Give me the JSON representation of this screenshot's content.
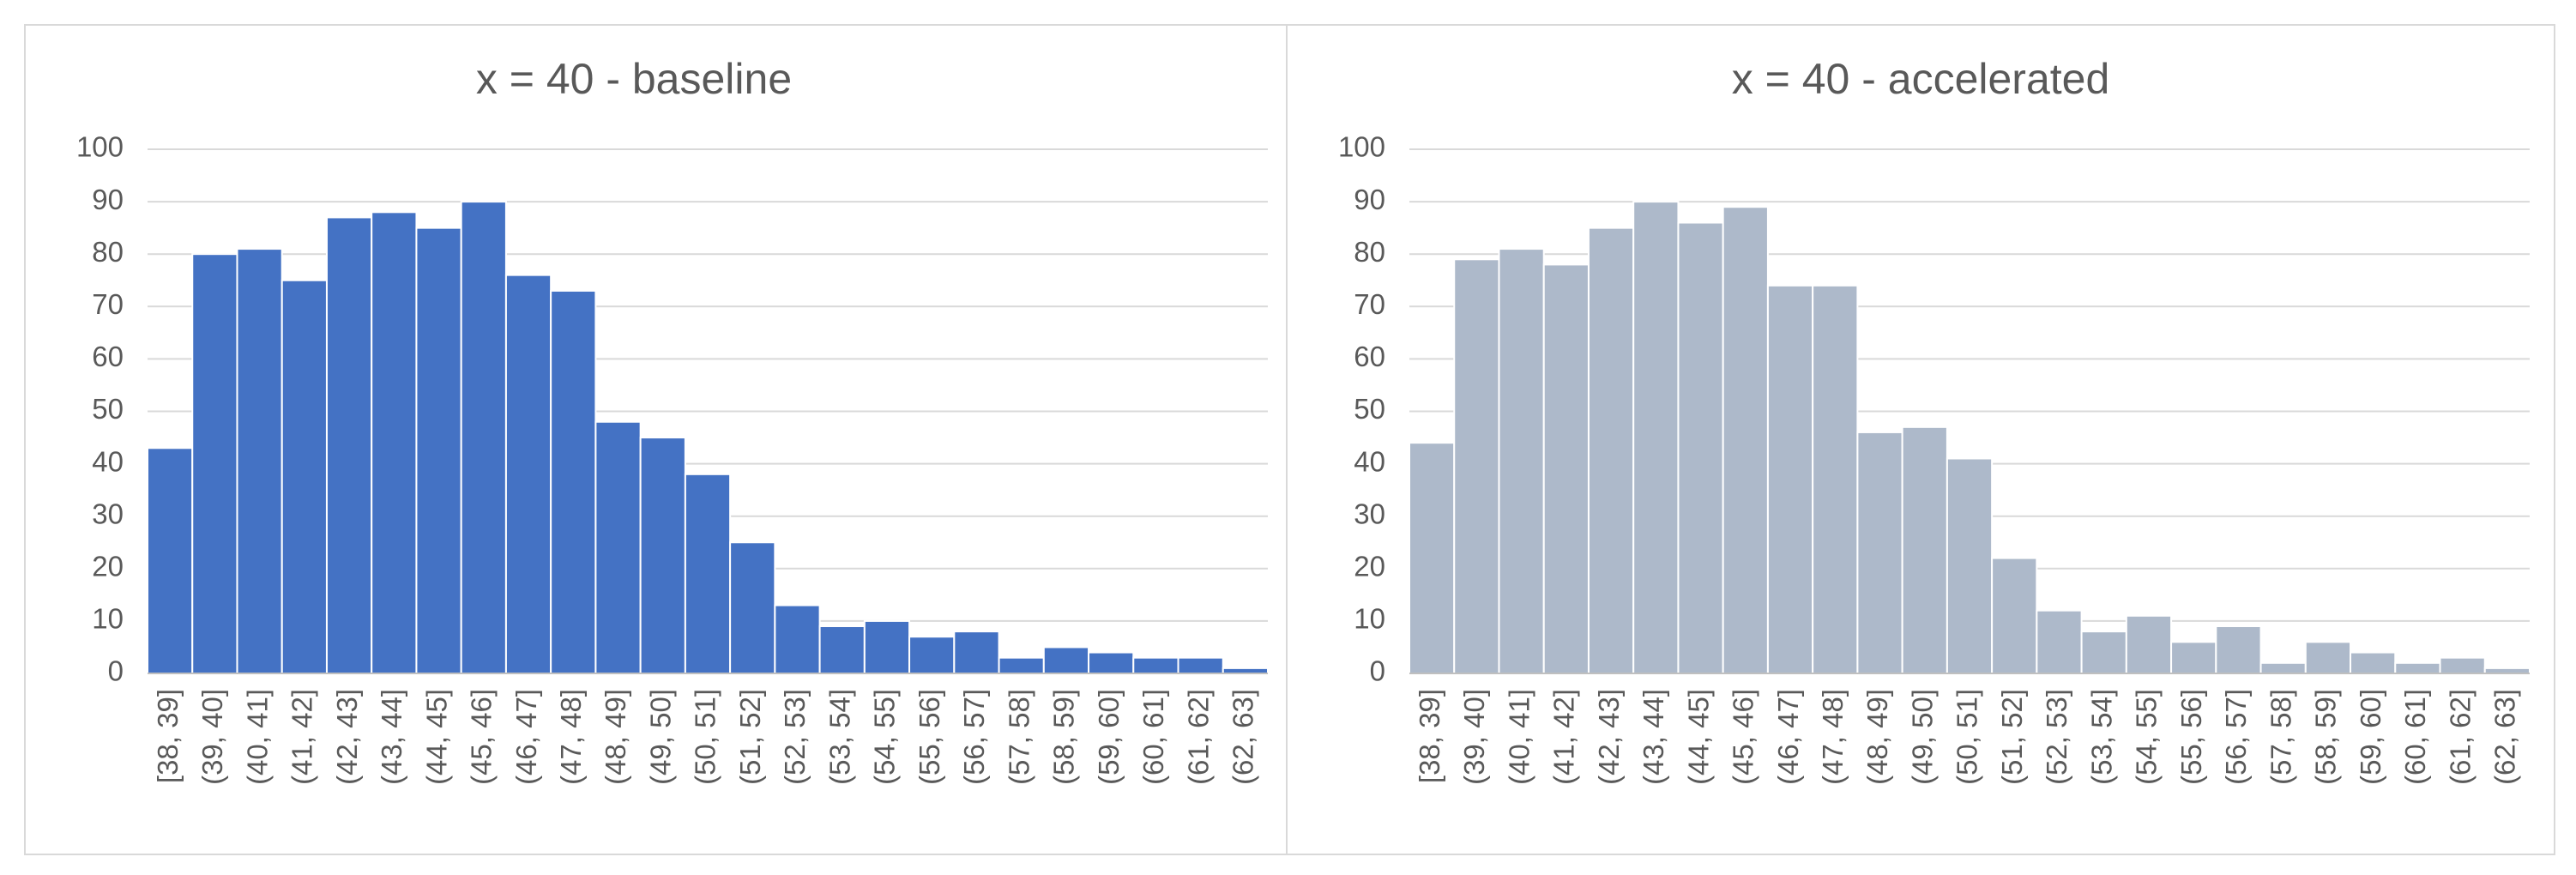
{
  "chart_data": [
    {
      "type": "bar",
      "title": "x = 40 - baseline",
      "color": "#4472c4",
      "categories": [
        "[38, 39]",
        "(39, 40]",
        "(40, 41]",
        "(41, 42]",
        "(42, 43]",
        "(43, 44]",
        "(44, 45]",
        "(45, 46]",
        "(46, 47]",
        "(47, 48]",
        "(48, 49]",
        "(49, 50]",
        "(50, 51]",
        "(51, 52]",
        "(52, 53]",
        "(53, 54]",
        "(54, 55]",
        "(55, 56]",
        "(56, 57]",
        "(57, 58]",
        "(58, 59]",
        "(59, 60]",
        "(60, 61]",
        "(61, 62]",
        "(62, 63]"
      ],
      "values": [
        43,
        80,
        81,
        75,
        87,
        88,
        85,
        90,
        76,
        73,
        48,
        45,
        38,
        25,
        13,
        9,
        10,
        7,
        8,
        3,
        5,
        4,
        3,
        3,
        1
      ],
      "ylim": [
        0,
        100
      ],
      "yticks": [
        0,
        10,
        20,
        30,
        40,
        50,
        60,
        70,
        80,
        90,
        100
      ],
      "grid": true
    },
    {
      "type": "bar",
      "title": "x = 40 - accelerated",
      "color": "#adb9ca",
      "categories": [
        "[38, 39]",
        "(39, 40]",
        "(40, 41]",
        "(41, 42]",
        "(42, 43]",
        "(43, 44]",
        "(44, 45]",
        "(45, 46]",
        "(46, 47]",
        "(47, 48]",
        "(48, 49]",
        "(49, 50]",
        "(50, 51]",
        "(51, 52]",
        "(52, 53]",
        "(53, 54]",
        "(54, 55]",
        "(55, 56]",
        "(56, 57]",
        "(57, 58]",
        "(58, 59]",
        "(59, 60]",
        "(60, 61]",
        "(61, 62]",
        "(62, 63]"
      ],
      "values": [
        44,
        79,
        81,
        78,
        85,
        90,
        86,
        89,
        74,
        74,
        46,
        47,
        41,
        22,
        12,
        8,
        11,
        6,
        9,
        2,
        6,
        4,
        2,
        3,
        1
      ],
      "ylim": [
        0,
        100
      ],
      "yticks": [
        0,
        10,
        20,
        30,
        40,
        50,
        60,
        70,
        80,
        90,
        100
      ],
      "grid": true
    }
  ]
}
